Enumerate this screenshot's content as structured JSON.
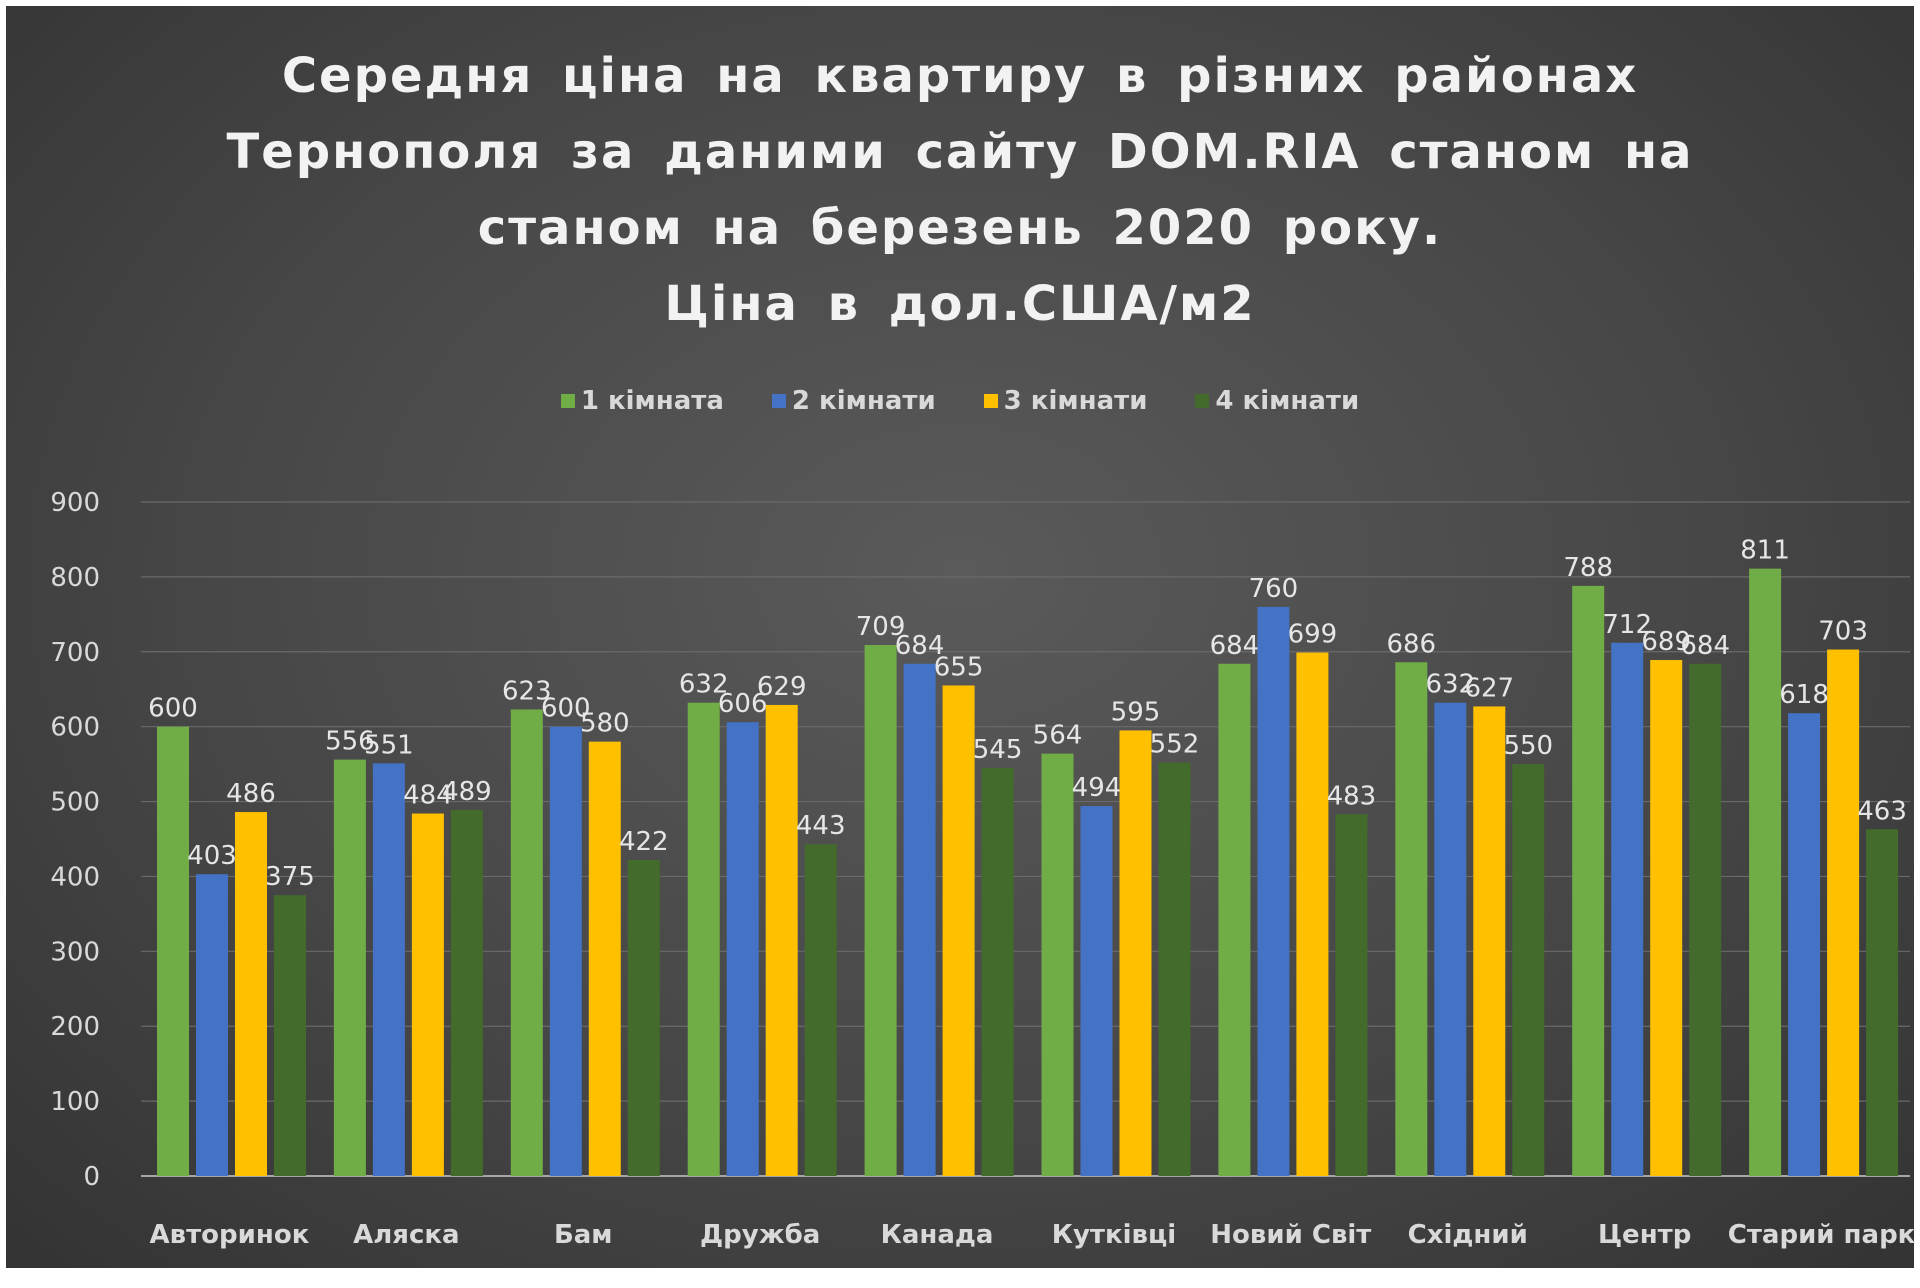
{
  "chart_data": {
    "type": "bar",
    "title": [
      "Середня ціна на квартиру в різних районах",
      "Тернополя за даними сайту DOM.RIA станом на",
      "станом на березень 2020 року.",
      "Ціна в дол.США/м2"
    ],
    "xlabel": "",
    "ylabel": "",
    "ylim": [
      0,
      900
    ],
    "yticks": [
      0,
      100,
      200,
      300,
      400,
      500,
      600,
      700,
      800,
      900
    ],
    "grid": true,
    "legend_position": "top",
    "categories": [
      "Авторинок",
      "Аляска",
      "Бам",
      "Дружба",
      "Канада",
      "Кутківці",
      "Новий Світ",
      "Східний",
      "Центр",
      "Старий парк"
    ],
    "series": [
      {
        "name": "1 кімната",
        "color": "#70ad47",
        "values": [
          600,
          556,
          623,
          632,
          709,
          564,
          684,
          686,
          788,
          811
        ]
      },
      {
        "name": "2 кімнати",
        "color": "#4472c4",
        "values": [
          403,
          551,
          600,
          606,
          684,
          494,
          760,
          632,
          712,
          618
        ]
      },
      {
        "name": "3 кімнати",
        "color": "#ffc000",
        "values": [
          486,
          484,
          580,
          629,
          655,
          595,
          699,
          627,
          689,
          703
        ]
      },
      {
        "name": "4 кімнати",
        "color": "#426b2c",
        "values": [
          375,
          489,
          422,
          443,
          545,
          552,
          483,
          550,
          684,
          463
        ]
      }
    ]
  }
}
